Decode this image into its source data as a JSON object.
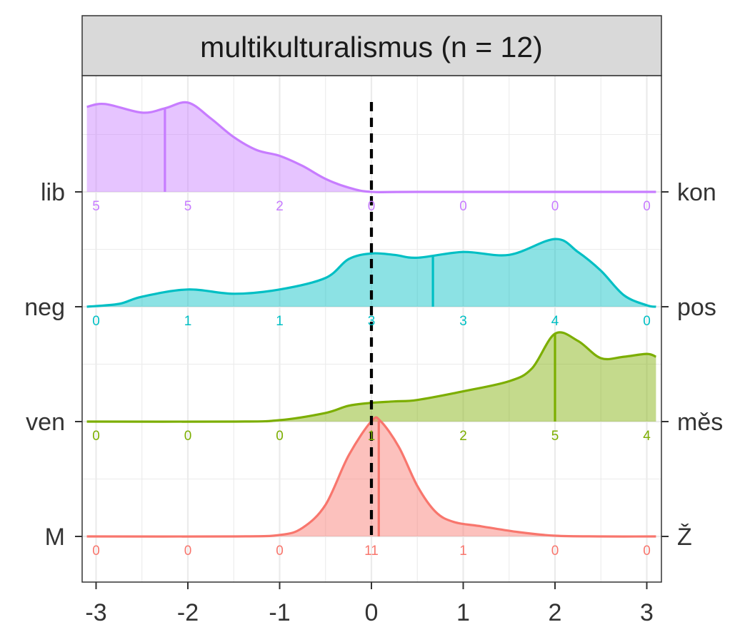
{
  "chart_data": {
    "type": "ridgeline",
    "title": "multikulturalismus (n = 12)",
    "xlabel": "",
    "ylabel": "",
    "xlim": [
      -3.1,
      3.1
    ],
    "x_ticks": [
      "-3",
      "-2",
      "-1",
      "0",
      "1",
      "2",
      "3"
    ],
    "reference_line_x": 0,
    "grid": true,
    "count_x": [
      -3,
      -2,
      -1,
      0,
      1,
      2,
      3
    ],
    "series": [
      {
        "left_label": "M",
        "right_label": "Ž",
        "color": "#F8766D",
        "mean": 0.08,
        "counts": [
          "0",
          "0",
          "0",
          "11",
          "1",
          "0",
          "0"
        ],
        "density": [
          [
            -3.1,
            0
          ],
          [
            -1.5,
            0
          ],
          [
            -1.0,
            0.01
          ],
          [
            -0.75,
            0.06
          ],
          [
            -0.5,
            0.22
          ],
          [
            -0.25,
            0.56
          ],
          [
            0,
            0.8
          ],
          [
            0.1,
            0.8
          ],
          [
            0.3,
            0.62
          ],
          [
            0.5,
            0.35
          ],
          [
            0.7,
            0.17
          ],
          [
            0.9,
            0.1
          ],
          [
            1.2,
            0.07
          ],
          [
            1.6,
            0.03
          ],
          [
            2.0,
            0.005
          ],
          [
            2.5,
            0
          ],
          [
            3.1,
            0
          ]
        ]
      },
      {
        "left_label": "ven",
        "right_label": "měs",
        "color": "#7CAE00",
        "mean": 2.0,
        "counts": [
          "0",
          "0",
          "0",
          "1",
          "2",
          "5",
          "4"
        ],
        "density": [
          [
            -3.1,
            0
          ],
          [
            -1.5,
            0
          ],
          [
            -1.0,
            0.01
          ],
          [
            -0.5,
            0.06
          ],
          [
            -0.25,
            0.11
          ],
          [
            0,
            0.13
          ],
          [
            0.25,
            0.14
          ],
          [
            0.5,
            0.15
          ],
          [
            1.0,
            0.21
          ],
          [
            1.5,
            0.28
          ],
          [
            1.75,
            0.37
          ],
          [
            2.0,
            0.61
          ],
          [
            2.25,
            0.56
          ],
          [
            2.5,
            0.44
          ],
          [
            2.75,
            0.45
          ],
          [
            3.0,
            0.47
          ],
          [
            3.1,
            0.45
          ]
        ]
      },
      {
        "left_label": "neg",
        "right_label": "pos",
        "color": "#00BFC4",
        "mean": 0.67,
        "counts": [
          "0",
          "1",
          "1",
          "3",
          "3",
          "4",
          "0"
        ],
        "density": [
          [
            -3.1,
            0
          ],
          [
            -2.75,
            0.02
          ],
          [
            -2.5,
            0.07
          ],
          [
            -2.0,
            0.12
          ],
          [
            -1.5,
            0.09
          ],
          [
            -1.0,
            0.12
          ],
          [
            -0.5,
            0.2
          ],
          [
            -0.25,
            0.33
          ],
          [
            0,
            0.37
          ],
          [
            0.25,
            0.36
          ],
          [
            0.5,
            0.34
          ],
          [
            1.0,
            0.38
          ],
          [
            1.5,
            0.36
          ],
          [
            2.0,
            0.47
          ],
          [
            2.25,
            0.38
          ],
          [
            2.5,
            0.25
          ],
          [
            2.75,
            0.08
          ],
          [
            3.0,
            0.01
          ],
          [
            3.1,
            0
          ]
        ]
      },
      {
        "left_label": "lib",
        "right_label": "kon",
        "color": "#C77CFF",
        "mean": -2.25,
        "counts": [
          "5",
          "5",
          "2",
          "0",
          "0",
          "0",
          "0"
        ],
        "density": [
          [
            -3.1,
            0.59
          ],
          [
            -2.9,
            0.61
          ],
          [
            -2.5,
            0.55
          ],
          [
            -2.25,
            0.58
          ],
          [
            -2.0,
            0.62
          ],
          [
            -1.75,
            0.51
          ],
          [
            -1.5,
            0.38
          ],
          [
            -1.25,
            0.29
          ],
          [
            -1.0,
            0.25
          ],
          [
            -0.75,
            0.18
          ],
          [
            -0.5,
            0.09
          ],
          [
            -0.25,
            0.03
          ],
          [
            0,
            0
          ],
          [
            0.5,
            0
          ],
          [
            3.1,
            0
          ]
        ]
      }
    ]
  }
}
